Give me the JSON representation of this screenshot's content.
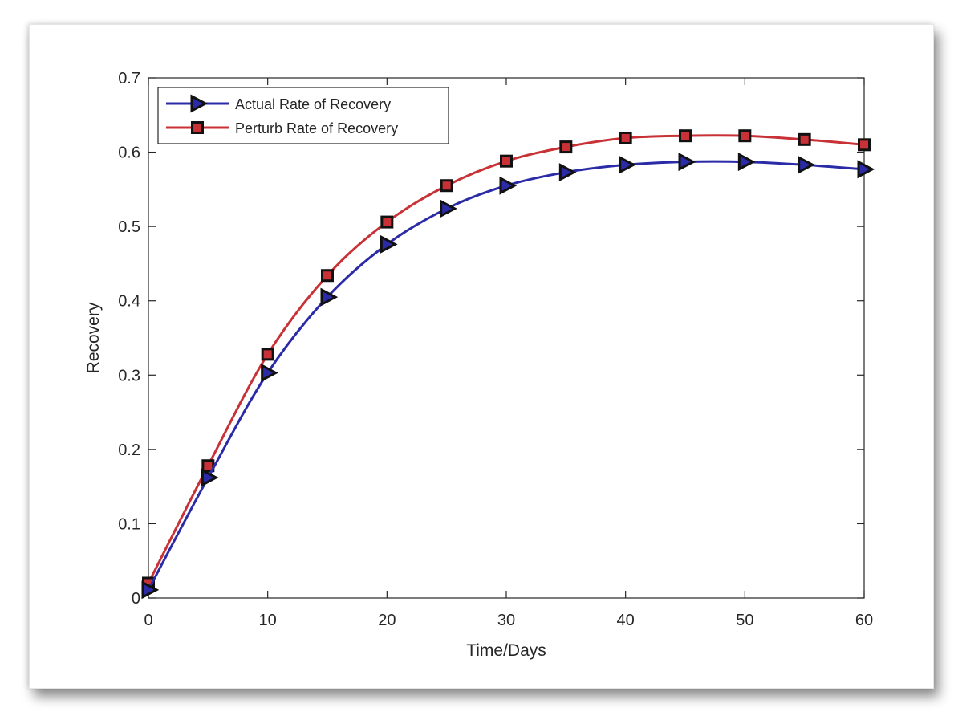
{
  "chart_data": {
    "type": "line",
    "title": "",
    "xlabel": "Time/Days",
    "ylabel": "Recovery",
    "xlim": [
      0,
      60
    ],
    "ylim": [
      0,
      0.7
    ],
    "xticks": [
      0,
      10,
      20,
      30,
      40,
      50,
      60
    ],
    "xtick_labels": [
      "0",
      "10",
      "20",
      "30",
      "40",
      "50",
      "60"
    ],
    "yticks": [
      0,
      0.1,
      0.2,
      0.3,
      0.4,
      0.5,
      0.6,
      0.7
    ],
    "ytick_labels": [
      "0",
      "0.1",
      "0.2",
      "0.3",
      "0.4",
      "0.5",
      "0.6",
      "0.7"
    ],
    "grid": false,
    "legend_position": "top-left",
    "series": [
      {
        "name": "Actual Rate of Recovery",
        "color": "#2b2ba8",
        "marker": "triangle-right",
        "x": [
          0,
          5,
          10,
          15,
          20,
          25,
          30,
          35,
          40,
          45,
          50,
          55,
          60
        ],
        "y": [
          0.011,
          0.162,
          0.303,
          0.405,
          0.476,
          0.524,
          0.555,
          0.573,
          0.583,
          0.587,
          0.587,
          0.583,
          0.577
        ]
      },
      {
        "name": "Perturb Rate of Recovery",
        "color": "#c83236",
        "marker": "square",
        "x": [
          0,
          5,
          10,
          15,
          20,
          25,
          30,
          35,
          40,
          45,
          50,
          55,
          60
        ],
        "y": [
          0.02,
          0.178,
          0.328,
          0.434,
          0.506,
          0.555,
          0.588,
          0.607,
          0.619,
          0.622,
          0.622,
          0.617,
          0.61
        ]
      }
    ]
  }
}
